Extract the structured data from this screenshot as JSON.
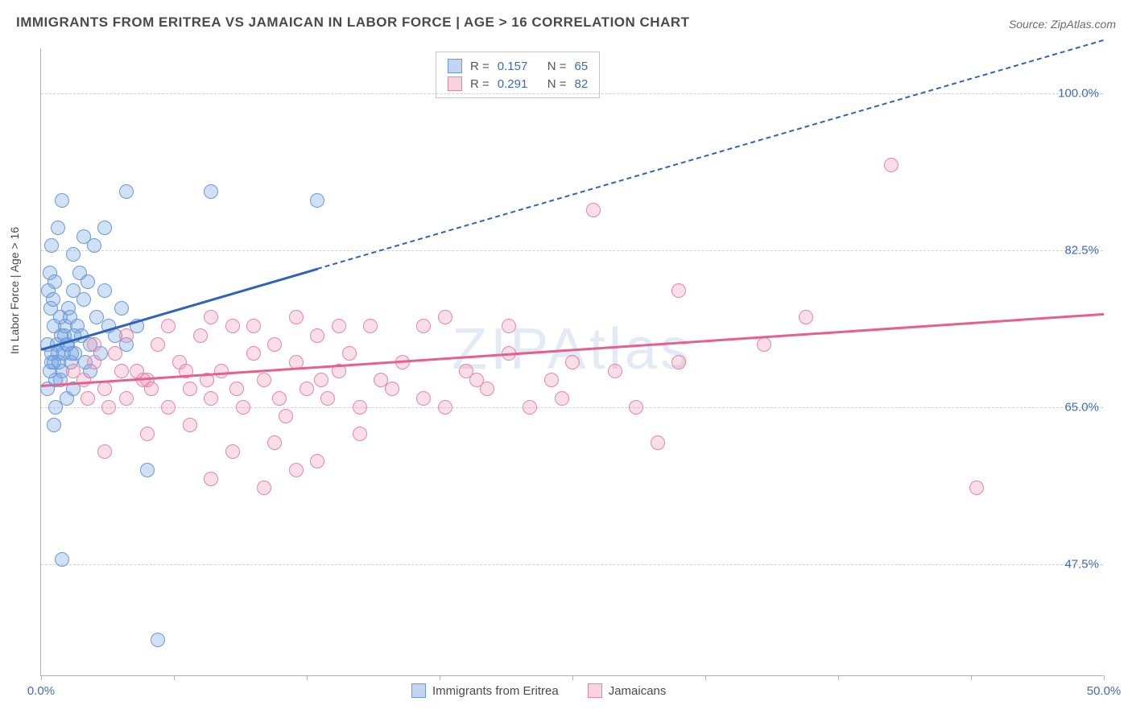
{
  "title": "IMMIGRANTS FROM ERITREA VS JAMAICAN IN LABOR FORCE | AGE > 16 CORRELATION CHART",
  "source": "Source: ZipAtlas.com",
  "y_axis_label": "In Labor Force | Age > 16",
  "watermark": "ZIPAtlas",
  "chart": {
    "type": "scatter",
    "x_range": [
      0.0,
      50.0
    ],
    "y_range": [
      35.0,
      105.0
    ],
    "y_ticks": [
      {
        "v": 47.5,
        "label": "47.5%"
      },
      {
        "v": 65.0,
        "label": "65.0%"
      },
      {
        "v": 82.5,
        "label": "82.5%"
      },
      {
        "v": 100.0,
        "label": "100.0%"
      }
    ],
    "x_ticks": [
      {
        "v": 0.0,
        "label": "0.0%"
      },
      {
        "v": 6.25,
        "label": ""
      },
      {
        "v": 12.5,
        "label": ""
      },
      {
        "v": 18.75,
        "label": ""
      },
      {
        "v": 25.0,
        "label": ""
      },
      {
        "v": 31.25,
        "label": ""
      },
      {
        "v": 37.5,
        "label": ""
      },
      {
        "v": 43.75,
        "label": ""
      },
      {
        "v": 50.0,
        "label": "50.0%"
      }
    ],
    "gridline_color": "#d8d8d8",
    "axis_color": "#b0b0b0",
    "tick_label_color": "#3f6ab5",
    "background_color": "#ffffff",
    "marker_radius": 9,
    "marker_border_width": 1.2,
    "series": [
      {
        "name": "Immigrants from Eritrea",
        "fill": "rgba(120,165,225,0.35)",
        "stroke": "#6a99d8",
        "line_color": "#2e63b8",
        "r": 0.157,
        "n": 65,
        "trend": {
          "x1": 0.0,
          "y1": 71.5,
          "x2": 13.0,
          "y2": 80.5,
          "dash_to_x": 50.0,
          "dash_to_y": 106.0
        },
        "points": [
          [
            0.3,
            72
          ],
          [
            0.5,
            70
          ],
          [
            0.6,
            74
          ],
          [
            0.7,
            68
          ],
          [
            0.8,
            71
          ],
          [
            0.9,
            75
          ],
          [
            1.0,
            69
          ],
          [
            1.1,
            73
          ],
          [
            1.2,
            72
          ],
          [
            1.3,
            76
          ],
          [
            1.4,
            70
          ],
          [
            1.5,
            78
          ],
          [
            1.6,
            71
          ],
          [
            1.7,
            74
          ],
          [
            1.8,
            80
          ],
          [
            1.9,
            73
          ],
          [
            2.0,
            77
          ],
          [
            2.1,
            70
          ],
          [
            2.2,
            79
          ],
          [
            2.3,
            72
          ],
          [
            2.5,
            83
          ],
          [
            2.6,
            75
          ],
          [
            2.8,
            71
          ],
          [
            3.0,
            78
          ],
          [
            3.2,
            74
          ],
          [
            3.5,
            73
          ],
          [
            3.8,
            76
          ],
          [
            4.0,
            72
          ],
          [
            4.5,
            74
          ],
          [
            1.0,
            88
          ],
          [
            0.5,
            83
          ],
          [
            0.8,
            85
          ],
          [
            1.5,
            82
          ],
          [
            2.0,
            84
          ],
          [
            0.6,
            63
          ],
          [
            1.2,
            66
          ],
          [
            0.9,
            68
          ],
          [
            1.5,
            67
          ],
          [
            0.7,
            65
          ],
          [
            2.3,
            69
          ],
          [
            1.0,
            48
          ],
          [
            5.5,
            39
          ],
          [
            5.0,
            58
          ],
          [
            4.0,
            89
          ],
          [
            8.0,
            89
          ],
          [
            13.0,
            88
          ],
          [
            3.0,
            85
          ],
          [
            0.4,
            80
          ],
          [
            0.35,
            78
          ],
          [
            0.45,
            76
          ],
          [
            0.55,
            77
          ],
          [
            0.65,
            79
          ],
          [
            0.75,
            72
          ],
          [
            0.85,
            70
          ],
          [
            0.95,
            73
          ],
          [
            1.05,
            71
          ],
          [
            1.15,
            74
          ],
          [
            1.25,
            72
          ],
          [
            1.35,
            75
          ],
          [
            1.45,
            71
          ],
          [
            1.55,
            73
          ],
          [
            0.3,
            67
          ],
          [
            0.4,
            69
          ],
          [
            0.5,
            71
          ],
          [
            0.6,
            70
          ]
        ]
      },
      {
        "name": "Jamaicans",
        "fill": "rgba(235,145,175,0.30)",
        "stroke": "#e586a8",
        "line_color": "#e75f8f",
        "r": 0.291,
        "n": 82,
        "trend": {
          "x1": 0.0,
          "y1": 67.5,
          "x2": 50.0,
          "y2": 75.5
        },
        "points": [
          [
            1.5,
            69
          ],
          [
            2.0,
            68
          ],
          [
            2.5,
            70
          ],
          [
            3.0,
            67
          ],
          [
            3.5,
            71
          ],
          [
            4.0,
            66
          ],
          [
            4.5,
            69
          ],
          [
            5.0,
            68
          ],
          [
            5.5,
            72
          ],
          [
            6.0,
            65
          ],
          [
            6.5,
            70
          ],
          [
            7.0,
            67
          ],
          [
            7.5,
            73
          ],
          [
            8.0,
            66
          ],
          [
            8.5,
            69
          ],
          [
            9.0,
            74
          ],
          [
            9.5,
            65
          ],
          [
            10.0,
            71
          ],
          [
            10.5,
            68
          ],
          [
            11.0,
            72
          ],
          [
            11.5,
            64
          ],
          [
            12.0,
            70
          ],
          [
            12.5,
            67
          ],
          [
            13.0,
            73
          ],
          [
            13.5,
            66
          ],
          [
            14.0,
            69
          ],
          [
            14.5,
            71
          ],
          [
            15.0,
            65
          ],
          [
            15.5,
            74
          ],
          [
            16.0,
            68
          ],
          [
            17.0,
            70
          ],
          [
            18.0,
            66
          ],
          [
            19.0,
            75
          ],
          [
            20.0,
            69
          ],
          [
            21.0,
            67
          ],
          [
            22.0,
            71
          ],
          [
            23.0,
            65
          ],
          [
            24.0,
            68
          ],
          [
            25.0,
            70
          ],
          [
            3.0,
            60
          ],
          [
            5.0,
            62
          ],
          [
            7.0,
            63
          ],
          [
            9.0,
            60
          ],
          [
            11.0,
            61
          ],
          [
            13.0,
            59
          ],
          [
            15.0,
            62
          ],
          [
            8.0,
            57
          ],
          [
            10.5,
            56
          ],
          [
            12.0,
            58
          ],
          [
            6.0,
            74
          ],
          [
            8.0,
            75
          ],
          [
            10.0,
            74
          ],
          [
            12.0,
            75
          ],
          [
            18.0,
            74
          ],
          [
            2.5,
            72
          ],
          [
            4.0,
            73
          ],
          [
            26.0,
            87
          ],
          [
            30.0,
            70
          ],
          [
            30.0,
            78
          ],
          [
            34.0,
            72
          ],
          [
            29.0,
            61
          ],
          [
            36.0,
            75
          ],
          [
            40.0,
            92
          ],
          [
            44.0,
            56
          ],
          [
            28.0,
            65
          ],
          [
            22.0,
            74
          ],
          [
            19.0,
            65
          ],
          [
            14.0,
            74
          ],
          [
            3.8,
            69
          ],
          [
            4.8,
            68
          ],
          [
            6.8,
            69
          ],
          [
            7.8,
            68
          ],
          [
            2.2,
            66
          ],
          [
            3.2,
            65
          ],
          [
            5.2,
            67
          ],
          [
            9.2,
            67
          ],
          [
            11.2,
            66
          ],
          [
            13.2,
            68
          ],
          [
            16.5,
            67
          ],
          [
            20.5,
            68
          ],
          [
            24.5,
            66
          ],
          [
            27.0,
            69
          ]
        ]
      }
    ]
  },
  "stats_box": {
    "rows": [
      {
        "swatch_fill": "rgba(120,165,225,0.45)",
        "swatch_stroke": "#6a99d8",
        "r": "0.157",
        "n": "65"
      },
      {
        "swatch_fill": "rgba(235,145,175,0.40)",
        "swatch_stroke": "#e586a8",
        "r": "0.291",
        "n": "82"
      }
    ],
    "r_label": "R =",
    "n_label": "N =",
    "value_color": "#3f6ab5"
  },
  "legend": [
    {
      "fill": "rgba(120,165,225,0.45)",
      "stroke": "#6a99d8",
      "label": "Immigrants from Eritrea"
    },
    {
      "fill": "rgba(235,145,175,0.40)",
      "stroke": "#e586a8",
      "label": "Jamaicans"
    }
  ]
}
